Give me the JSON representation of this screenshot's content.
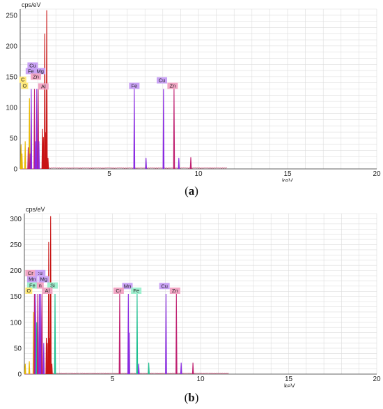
{
  "chart_data": [
    {
      "type": "spectrum",
      "panel_label": "a",
      "y_unit_label": "cps/eV",
      "x_unit_label": "keV",
      "xlim": [
        0,
        20
      ],
      "ylim": [
        0,
        260
      ],
      "x_ticks": [
        5,
        10,
        15,
        20
      ],
      "y_ticks": [
        0,
        50,
        100,
        150,
        200,
        250
      ],
      "grid": true,
      "peaks": [
        {
          "x": 0.05,
          "y": 40,
          "color": "#e8b800"
        },
        {
          "x": 0.1,
          "y": 25,
          "color": "#e8b800"
        },
        {
          "x": 0.28,
          "y": 45,
          "color": "#e8b800"
        },
        {
          "x": 0.52,
          "y": 115,
          "color": "#e8b800"
        },
        {
          "x": 0.45,
          "y": 35,
          "color": "#c02070"
        },
        {
          "x": 0.55,
          "y": 25,
          "color": "#c02070"
        },
        {
          "x": 0.62,
          "y": 130,
          "color": "#8a2be2"
        },
        {
          "x": 0.8,
          "y": 130,
          "color": "#c02070"
        },
        {
          "x": 0.85,
          "y": 45,
          "color": "#8a2be2"
        },
        {
          "x": 0.93,
          "y": 130,
          "color": "#8a2be2"
        },
        {
          "x": 1.01,
          "y": 130,
          "color": "#c02070"
        },
        {
          "x": 1.05,
          "y": 45,
          "color": "#8a2be2"
        },
        {
          "x": 1.25,
          "y": 65,
          "color": "#c81414"
        },
        {
          "x": 1.3,
          "y": 52,
          "color": "#c81414"
        },
        {
          "x": 1.38,
          "y": 220,
          "color": "#c81414"
        },
        {
          "x": 1.45,
          "y": 60,
          "color": "#c81414"
        },
        {
          "x": 1.49,
          "y": 258,
          "color": "#c81414"
        },
        {
          "x": 1.56,
          "y": 18,
          "color": "#c81414"
        },
        {
          "x": 6.4,
          "y": 130,
          "color": "#8a2be2"
        },
        {
          "x": 7.06,
          "y": 18,
          "color": "#8a2be2"
        },
        {
          "x": 8.04,
          "y": 130,
          "color": "#8a2be2"
        },
        {
          "x": 8.63,
          "y": 130,
          "color": "#c02070"
        },
        {
          "x": 8.9,
          "y": 18,
          "color": "#8a2be2"
        },
        {
          "x": 9.57,
          "y": 19,
          "color": "#c02070"
        }
      ],
      "labels": [
        {
          "text": "C",
          "x": 0.15,
          "y": 140,
          "color": "#ffe97a"
        },
        {
          "text": "O",
          "x": 0.25,
          "y": 130,
          "color": "#ffe97a"
        },
        {
          "text": "Cu",
          "x": 0.7,
          "y": 163,
          "color": "#c9a2f5"
        },
        {
          "text": "Fe",
          "x": 0.6,
          "y": 154,
          "color": "#c9a2f5"
        },
        {
          "text": "Mg",
          "x": 1.12,
          "y": 154,
          "color": "#c9a2f5"
        },
        {
          "text": "Zn",
          "x": 0.88,
          "y": 145,
          "color": "#f2a6c4"
        },
        {
          "text": "Al",
          "x": 1.3,
          "y": 129,
          "color": "#f2a6c4"
        },
        {
          "text": "Fe",
          "x": 6.4,
          "y": 130,
          "color": "#c9a2f5"
        },
        {
          "text": "Cu",
          "x": 7.95,
          "y": 139,
          "color": "#c9a2f5"
        },
        {
          "text": "Zn",
          "x": 8.55,
          "y": 130,
          "color": "#f2a6c4"
        }
      ]
    },
    {
      "type": "spectrum",
      "panel_label": "b",
      "y_unit_label": "cps/eV",
      "x_unit_label": "keV",
      "xlim": [
        0,
        20
      ],
      "ylim": [
        0,
        310
      ],
      "x_ticks": [
        5,
        10,
        15,
        20
      ],
      "y_ticks": [
        0,
        50,
        100,
        150,
        200,
        250,
        300
      ],
      "grid": true,
      "peaks": [
        {
          "x": 0.05,
          "y": 20,
          "color": "#e8b800"
        },
        {
          "x": 0.28,
          "y": 25,
          "color": "#e8b800"
        },
        {
          "x": 0.52,
          "y": 120,
          "color": "#e8b800"
        },
        {
          "x": 0.57,
          "y": 155,
          "color": "#c02070"
        },
        {
          "x": 0.64,
          "y": 155,
          "color": "#8a2be2"
        },
        {
          "x": 0.7,
          "y": 100,
          "color": "#1ec090"
        },
        {
          "x": 0.76,
          "y": 155,
          "color": "#c02070"
        },
        {
          "x": 0.85,
          "y": 155,
          "color": "#8a2be2"
        },
        {
          "x": 0.93,
          "y": 155,
          "color": "#8a2be2"
        },
        {
          "x": 1.0,
          "y": 155,
          "color": "#c02070"
        },
        {
          "x": 1.1,
          "y": 60,
          "color": "#8a2be2"
        },
        {
          "x": 1.25,
          "y": 70,
          "color": "#c81414"
        },
        {
          "x": 1.3,
          "y": 60,
          "color": "#c81414"
        },
        {
          "x": 1.38,
          "y": 255,
          "color": "#c81414"
        },
        {
          "x": 1.45,
          "y": 70,
          "color": "#c81414"
        },
        {
          "x": 1.49,
          "y": 305,
          "color": "#c81414"
        },
        {
          "x": 1.56,
          "y": 20,
          "color": "#c81414"
        },
        {
          "x": 1.74,
          "y": 155,
          "color": "#1ec090"
        },
        {
          "x": 5.41,
          "y": 155,
          "color": "#c02070"
        },
        {
          "x": 5.9,
          "y": 155,
          "color": "#8a2be2"
        },
        {
          "x": 5.95,
          "y": 80,
          "color": "#8a2be2"
        },
        {
          "x": 6.4,
          "y": 155,
          "color": "#1ec090"
        },
        {
          "x": 6.49,
          "y": 20,
          "color": "#8a2be2"
        },
        {
          "x": 7.06,
          "y": 22,
          "color": "#1ec090"
        },
        {
          "x": 8.04,
          "y": 155,
          "color": "#8a2be2"
        },
        {
          "x": 8.63,
          "y": 155,
          "color": "#c02070"
        },
        {
          "x": 8.9,
          "y": 22,
          "color": "#8a2be2"
        },
        {
          "x": 9.57,
          "y": 22,
          "color": "#c02070"
        }
      ],
      "labels": [
        {
          "text": "Cr",
          "x": 0.35,
          "y": 189,
          "color": "#f2a6c4"
        },
        {
          "text": ":u",
          "x": 0.9,
          "y": 189,
          "color": "#c9a2f5"
        },
        {
          "text": "Mn",
          "x": 0.45,
          "y": 177,
          "color": "#c9a2f5"
        },
        {
          "text": "Mg",
          "x": 1.1,
          "y": 177,
          "color": "#c9a2f5"
        },
        {
          "text": "Fe",
          "x": 0.45,
          "y": 165,
          "color": "#9ff0cf"
        },
        {
          "text": "n",
          "x": 0.9,
          "y": 165,
          "color": "#f2a6c4"
        },
        {
          "text": "Si",
          "x": 1.6,
          "y": 165,
          "color": "#9ff0cf"
        },
        {
          "text": "O",
          "x": 0.25,
          "y": 155,
          "color": "#ffe97a"
        },
        {
          "text": "Al",
          "x": 1.3,
          "y": 155,
          "color": "#f2a6c4"
        },
        {
          "text": "Mn",
          "x": 5.85,
          "y": 164,
          "color": "#c9a2f5"
        },
        {
          "text": "Cr",
          "x": 5.35,
          "y": 155,
          "color": "#f2a6c4"
        },
        {
          "text": "Fe",
          "x": 6.35,
          "y": 155,
          "color": "#9ff0cf"
        },
        {
          "text": "Cu",
          "x": 7.95,
          "y": 164,
          "color": "#c9a2f5"
        },
        {
          "text": "Zn",
          "x": 8.55,
          "y": 155,
          "color": "#f2a6c4"
        }
      ]
    }
  ]
}
